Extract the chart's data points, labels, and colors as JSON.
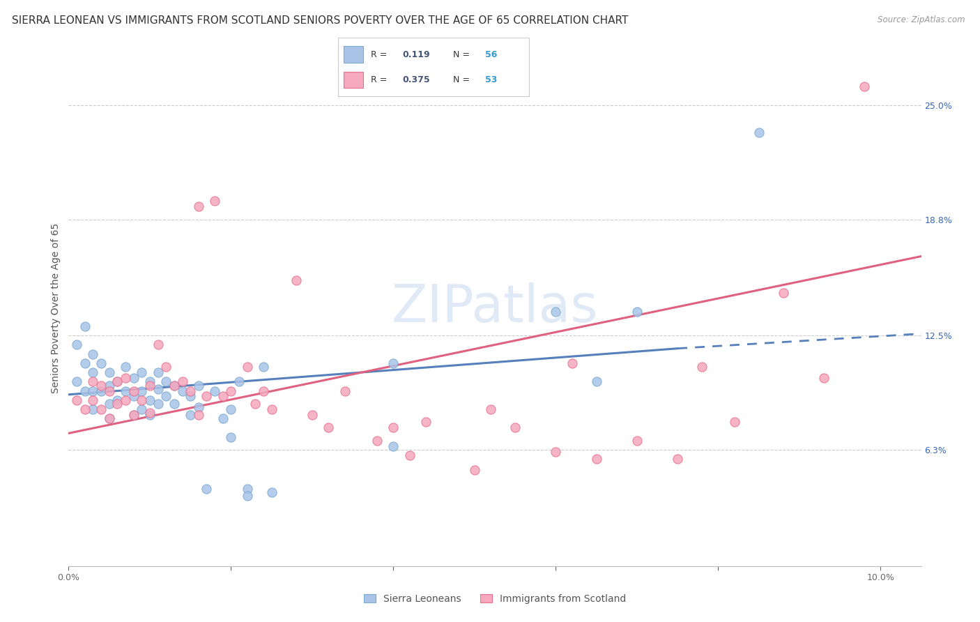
{
  "title": "SIERRA LEONEAN VS IMMIGRANTS FROM SCOTLAND SENIORS POVERTY OVER THE AGE OF 65 CORRELATION CHART",
  "source": "Source: ZipAtlas.com",
  "ylabel": "Seniors Poverty Over the Age of 65",
  "xlim": [
    0.0,
    0.105
  ],
  "ylim": [
    0.0,
    0.28
  ],
  "xticks": [
    0.0,
    0.02,
    0.04,
    0.06,
    0.08,
    0.1
  ],
  "xticklabels": [
    "0.0%",
    "",
    "",
    "",
    "",
    "10.0%"
  ],
  "right_yticks": [
    0.063,
    0.125,
    0.188,
    0.25
  ],
  "right_yticklabels": [
    "6.3%",
    "12.5%",
    "18.8%",
    "25.0%"
  ],
  "blue_color": "#aac4e8",
  "pink_color": "#f5a8be",
  "blue_edge_color": "#7aaad0",
  "pink_edge_color": "#e87090",
  "blue_line_color": "#5580bb",
  "pink_line_color": "#e06080",
  "watermark": "ZIPatlas",
  "watermark_color": "#c8d8f0",
  "legend_r_color": "#445577",
  "legend_n_color": "#3399cc",
  "grid_color": "#cccccc",
  "background_color": "#ffffff",
  "title_fontsize": 11,
  "axis_label_fontsize": 10,
  "blue_trend_x0": 0.0,
  "blue_trend_x1": 0.075,
  "blue_trend_x2": 0.105,
  "blue_trend_y0": 0.093,
  "blue_trend_y1": 0.118,
  "blue_trend_y2": 0.126,
  "pink_trend_x0": 0.0,
  "pink_trend_x1": 0.105,
  "pink_trend_y0": 0.072,
  "pink_trend_y1": 0.168,
  "blue_scatter_x": [
    0.001,
    0.001,
    0.002,
    0.002,
    0.002,
    0.003,
    0.003,
    0.003,
    0.003,
    0.004,
    0.004,
    0.005,
    0.005,
    0.005,
    0.005,
    0.006,
    0.006,
    0.007,
    0.007,
    0.008,
    0.008,
    0.008,
    0.009,
    0.009,
    0.009,
    0.01,
    0.01,
    0.01,
    0.011,
    0.011,
    0.011,
    0.012,
    0.012,
    0.013,
    0.013,
    0.014,
    0.015,
    0.015,
    0.016,
    0.016,
    0.017,
    0.018,
    0.019,
    0.02,
    0.02,
    0.021,
    0.022,
    0.022,
    0.024,
    0.025,
    0.04,
    0.04,
    0.06,
    0.065,
    0.07,
    0.085
  ],
  "blue_scatter_y": [
    0.12,
    0.1,
    0.13,
    0.11,
    0.095,
    0.115,
    0.105,
    0.095,
    0.085,
    0.11,
    0.095,
    0.105,
    0.098,
    0.088,
    0.08,
    0.1,
    0.09,
    0.108,
    0.095,
    0.102,
    0.092,
    0.082,
    0.105,
    0.095,
    0.085,
    0.1,
    0.09,
    0.082,
    0.105,
    0.096,
    0.088,
    0.1,
    0.092,
    0.098,
    0.088,
    0.095,
    0.092,
    0.082,
    0.098,
    0.086,
    0.042,
    0.095,
    0.08,
    0.085,
    0.07,
    0.1,
    0.042,
    0.038,
    0.108,
    0.04,
    0.11,
    0.065,
    0.138,
    0.1,
    0.138,
    0.235
  ],
  "pink_scatter_x": [
    0.001,
    0.002,
    0.003,
    0.003,
    0.004,
    0.004,
    0.005,
    0.005,
    0.006,
    0.006,
    0.007,
    0.007,
    0.008,
    0.008,
    0.009,
    0.01,
    0.01,
    0.011,
    0.012,
    0.013,
    0.014,
    0.015,
    0.016,
    0.016,
    0.017,
    0.018,
    0.019,
    0.02,
    0.022,
    0.023,
    0.024,
    0.025,
    0.028,
    0.03,
    0.032,
    0.034,
    0.038,
    0.04,
    0.042,
    0.044,
    0.05,
    0.052,
    0.055,
    0.06,
    0.062,
    0.065,
    0.07,
    0.075,
    0.078,
    0.082,
    0.088,
    0.093,
    0.098
  ],
  "pink_scatter_y": [
    0.09,
    0.085,
    0.1,
    0.09,
    0.098,
    0.085,
    0.095,
    0.08,
    0.1,
    0.088,
    0.102,
    0.09,
    0.095,
    0.082,
    0.09,
    0.098,
    0.083,
    0.12,
    0.108,
    0.098,
    0.1,
    0.095,
    0.195,
    0.082,
    0.092,
    0.198,
    0.092,
    0.095,
    0.108,
    0.088,
    0.095,
    0.085,
    0.155,
    0.082,
    0.075,
    0.095,
    0.068,
    0.075,
    0.06,
    0.078,
    0.052,
    0.085,
    0.075,
    0.062,
    0.11,
    0.058,
    0.068,
    0.058,
    0.108,
    0.078,
    0.148,
    0.102,
    0.26
  ]
}
